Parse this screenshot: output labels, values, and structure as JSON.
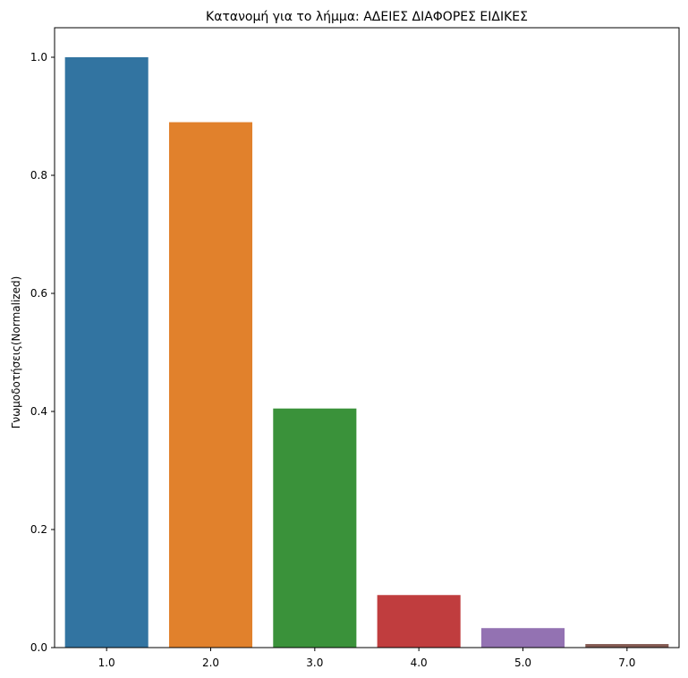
{
  "chart_data": {
    "type": "bar",
    "title": "Κατανομή για το λήμμα: ΑΔΕΙΕΣ ΔΙΑΦΟΡΕΣ ΕΙΔΙΚΕΣ",
    "xlabel": "",
    "ylabel": "Γνωμοδοτήσεις(Normalized)",
    "categories": [
      "1.0",
      "2.0",
      "3.0",
      "4.0",
      "5.0",
      "7.0"
    ],
    "values": [
      1.0,
      0.89,
      0.405,
      0.089,
      0.033,
      0.006
    ],
    "colors": [
      "#3274a1",
      "#e1812c",
      "#3a923a",
      "#c03d3e",
      "#9372b2",
      "#845b53"
    ],
    "ylim": [
      0,
      1.05
    ],
    "yticks": [
      0.0,
      0.2,
      0.4,
      0.6,
      0.8,
      1.0
    ],
    "ytick_labels": [
      "0.0",
      "0.2",
      "0.4",
      "0.6",
      "0.8",
      "1.0"
    ],
    "grid": false,
    "legend": "none"
  }
}
